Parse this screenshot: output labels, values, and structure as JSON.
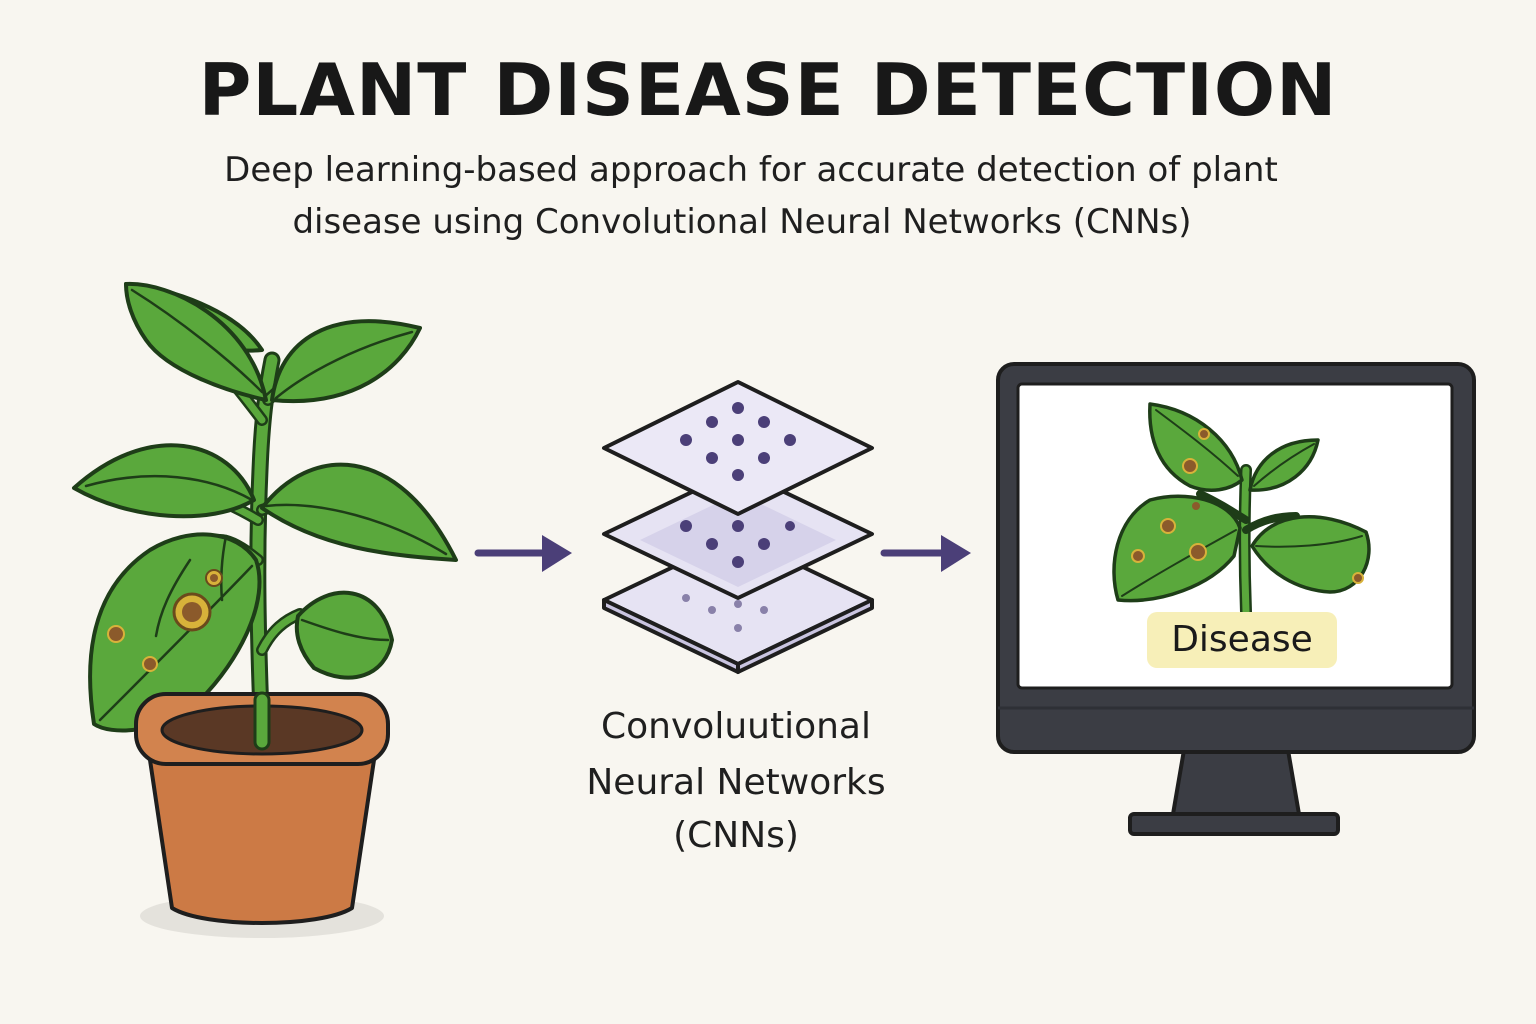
{
  "header": {
    "title": "PLANT DISEASE DETECTION",
    "subtitle_line1": "Deep learning-based approach for accurate detection of plant",
    "subtitle_line2": "disease using Convolutional Neural Networks (CNNs)"
  },
  "cnn": {
    "label_line1": "Convoluutional",
    "label_line2": "Neural Networks",
    "label_line3": "(CNNs)"
  },
  "monitor": {
    "result_label": "Disease"
  },
  "colors": {
    "background": "#f8f6f0",
    "leaf": "#5aa83c",
    "leaf_outline": "#1e3d18",
    "pot": "#cc7a45",
    "arrow": "#4b3f78",
    "layer": "#e6e3f3",
    "monitor": "#3b3d44",
    "badge": "#f7efb8"
  },
  "icons": [
    "potted-plant-icon",
    "arrow-right-icon",
    "cnn-layers-icon",
    "monitor-icon"
  ]
}
